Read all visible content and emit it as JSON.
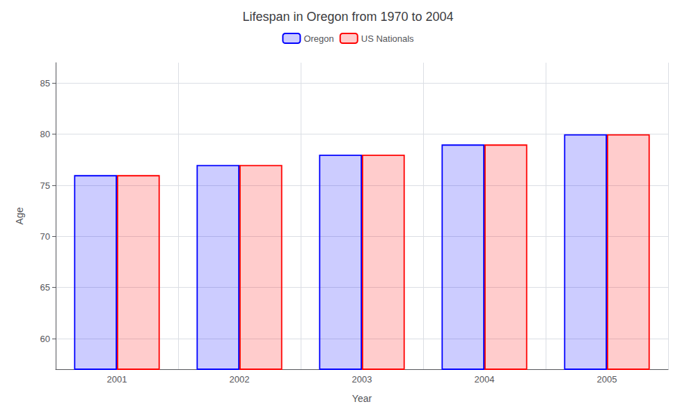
{
  "chart_data": {
    "type": "bar",
    "title": "Lifespan in Oregon from 1970 to 2004",
    "x_label": "Year",
    "y_label": "Age",
    "categories": [
      "2001",
      "2002",
      "2003",
      "2004",
      "2005"
    ],
    "series": [
      {
        "name": "Oregon",
        "color": "#0000ff",
        "values": [
          76,
          77,
          78,
          79,
          80
        ]
      },
      {
        "name": "US Nationals",
        "color": "#ff0000",
        "values": [
          76,
          77,
          78,
          79,
          80
        ]
      }
    ],
    "ylim": [
      57,
      87
    ],
    "yticks": [
      60,
      65,
      70,
      75,
      80,
      85
    ],
    "grid": true,
    "legend": "top"
  }
}
